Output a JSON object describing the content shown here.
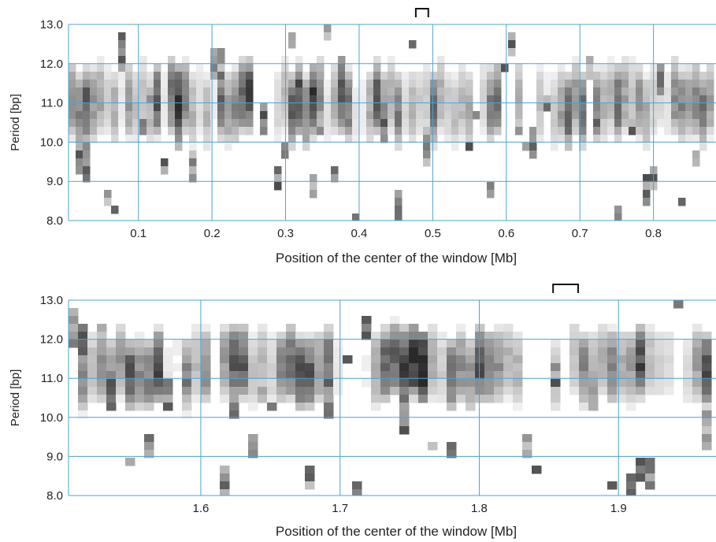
{
  "chart_data": [
    {
      "type": "heatmap",
      "xlabel": "Position of the center of the window [Mb]",
      "ylabel": "Period [bp]",
      "xlim": [
        0.005,
        0.885
      ],
      "ylim": [
        8.0,
        13.0
      ],
      "xticks": [
        0.1,
        0.2,
        0.3,
        0.4,
        0.5,
        0.6,
        0.7,
        0.8
      ],
      "yticks": [
        "8.0",
        "9.0",
        "10.0",
        "11.0",
        "12.0",
        "13.0"
      ],
      "grid": true,
      "grid_color": "#4aa3d8",
      "colormap": [
        "#ffffff",
        "#2a2a2a"
      ],
      "dark_band_period_range": [
        10.0,
        12.0
      ],
      "bracket_x_range": [
        0.477,
        0.494
      ]
    },
    {
      "type": "heatmap",
      "xlabel": "Position of the center of the window [Mb]",
      "ylabel": "Period [bp]",
      "xlim": [
        1.505,
        1.97
      ],
      "ylim": [
        8.0,
        13.0
      ],
      "xticks": [
        1.6,
        1.7,
        1.8,
        1.9
      ],
      "yticks": [
        "8.0",
        "9.0",
        "10.0",
        "11.0",
        "12.0",
        "13.0"
      ],
      "grid": true,
      "grid_color": "#4aa3d8",
      "colormap": [
        "#ffffff",
        "#2a2a2a"
      ],
      "dark_band_period_range": [
        10.3,
        12.3
      ],
      "bracket_x_range": [
        1.853,
        1.871
      ]
    }
  ]
}
